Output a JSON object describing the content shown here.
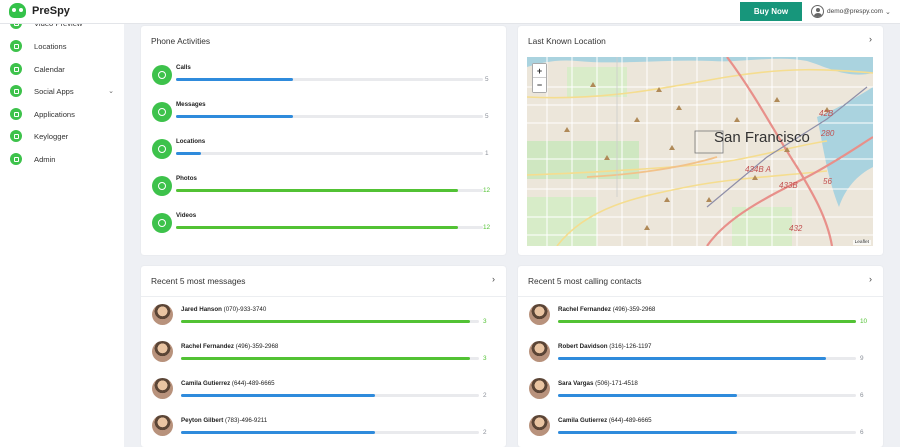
{
  "app": {
    "name": "PreSpy",
    "buy_label": "Buy Now",
    "user_email": "demo@prespy.com"
  },
  "colors": {
    "brand_green": "#3dc24b",
    "buy_button": "#17967b",
    "bar_blue": "#2f8bdc",
    "bar_green": "#52c234"
  },
  "sidebar": {
    "items": [
      {
        "label": "Video Preview",
        "icon": "video-icon"
      },
      {
        "label": "Locations",
        "icon": "location-icon"
      },
      {
        "label": "Calendar",
        "icon": "calendar-icon"
      },
      {
        "label": "Social Apps",
        "icon": "chat-icon",
        "has_submenu": true
      },
      {
        "label": "Applications",
        "icon": "apps-icon"
      },
      {
        "label": "Keylogger",
        "icon": "key-icon"
      },
      {
        "label": "Admin",
        "icon": "admin-icon"
      }
    ]
  },
  "phone_activities": {
    "title": "Phone Activities",
    "items": [
      {
        "label": "Calls",
        "value": "5",
        "fill": 0.38,
        "color": "blue"
      },
      {
        "label": "Messages",
        "value": "5",
        "fill": 0.38,
        "color": "blue"
      },
      {
        "label": "Locations",
        "value": "1",
        "fill": 0.08,
        "color": "blue"
      },
      {
        "label": "Photos",
        "value": "12",
        "fill": 0.92,
        "color": "green"
      },
      {
        "label": "Videos",
        "value": "12",
        "fill": 0.92,
        "color": "green"
      }
    ]
  },
  "location": {
    "title": "Last Known Location",
    "city_label": "San Francisco",
    "attribution": "Leaflet",
    "road_labels": [
      "42B",
      "280",
      "434B A",
      "433B",
      "56",
      "432"
    ]
  },
  "recent_messages": {
    "title": "Recent 5 most messages",
    "items": [
      {
        "name": "Jared Hanson",
        "phone": "(070)-933-3740",
        "value": "3",
        "fill": 0.97,
        "color": "green"
      },
      {
        "name": "Rachel Fernandez",
        "phone": "(496)-359-2968",
        "value": "3",
        "fill": 0.97,
        "color": "green"
      },
      {
        "name": "Camila Gutierrez",
        "phone": "(644)-489-6665",
        "value": "2",
        "fill": 0.65,
        "color": "blue"
      },
      {
        "name": "Peyton Gilbert",
        "phone": "(783)-496-9211",
        "value": "2",
        "fill": 0.65,
        "color": "blue"
      }
    ]
  },
  "recent_calls": {
    "title": "Recent 5 most calling contacts",
    "items": [
      {
        "name": "Rachel Fernandez",
        "phone": "(496)-359-2968",
        "value": "10",
        "fill": 1.0,
        "color": "green"
      },
      {
        "name": "Robert Davidson",
        "phone": "(316)-126-1197",
        "value": "9",
        "fill": 0.9,
        "color": "blue"
      },
      {
        "name": "Sara Vargas",
        "phone": "(506)-171-4518",
        "value": "6",
        "fill": 0.6,
        "color": "blue"
      },
      {
        "name": "Camila Gutierrez",
        "phone": "(644)-489-6665",
        "value": "6",
        "fill": 0.6,
        "color": "blue"
      }
    ]
  }
}
